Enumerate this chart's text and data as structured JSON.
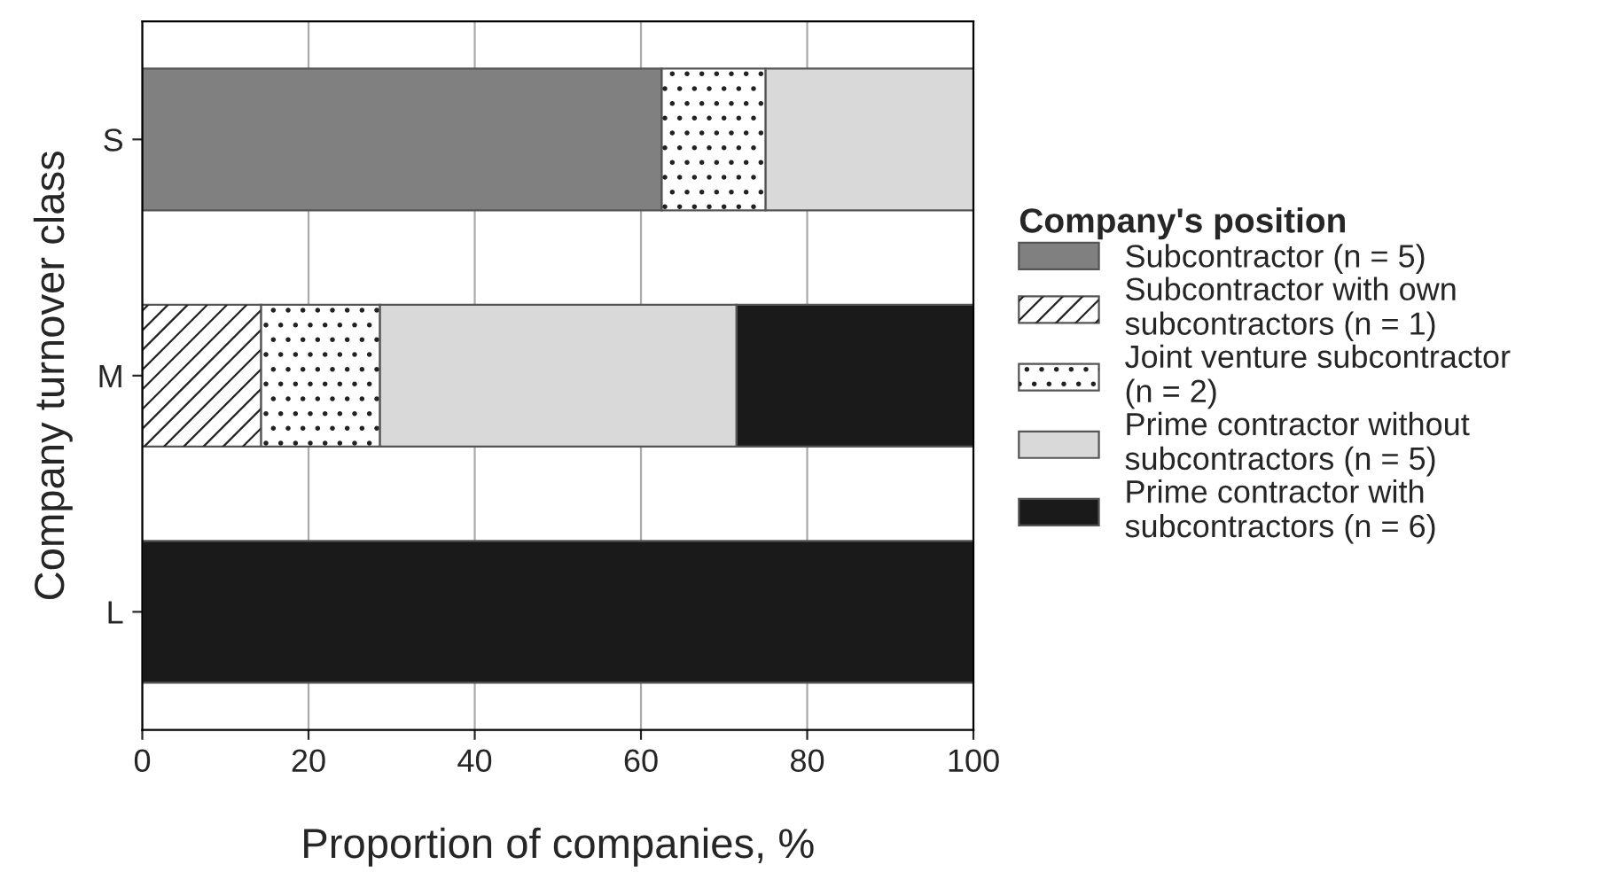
{
  "chart_data": {
    "type": "bar",
    "orientation": "horizontal",
    "stacked": true,
    "xlabel": "Proportion of companies, %",
    "ylabel": "Company turnover class",
    "legend_title": "Company's position",
    "categories": [
      "S",
      "M",
      "L"
    ],
    "series": [
      {
        "name": "Subcontractor (n = 5)",
        "color": "#808080",
        "values": [
          62.5,
          null,
          null
        ]
      },
      {
        "name": "Subcontractor with own\nsubcontractors (n = 1)",
        "color": "#ffffff",
        "values": [
          null,
          14.3,
          null
        ]
      },
      {
        "name": "Joint venture subcontractor\n(n = 2)",
        "color": "#ffffff",
        "values": [
          12.5,
          14.3,
          null
        ]
      },
      {
        "name": "Prime contractor without\nsubcontractors (n = 5)",
        "color": "#d9d9d9",
        "values": [
          25,
          42.9,
          null
        ]
      },
      {
        "name": "Prime contractor with\nsubcontractors (n = 6)",
        "color": "#1a1a1a",
        "values": [
          null,
          28.5,
          100
        ]
      }
    ],
    "xlim": [
      0,
      100
    ],
    "xticks": [
      0,
      20,
      40,
      60,
      80,
      100
    ],
    "grid": "x",
    "legend": "right"
  }
}
